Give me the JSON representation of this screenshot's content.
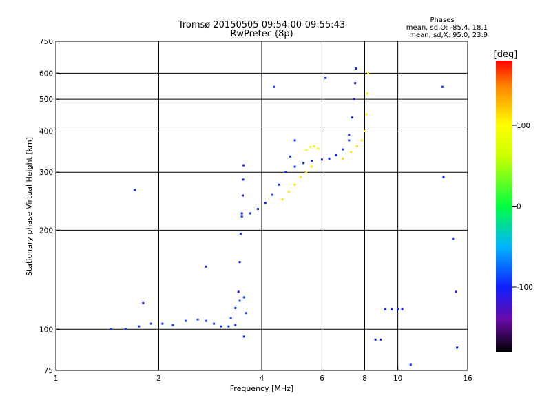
{
  "chart_data": {
    "type": "scatter",
    "title": "Tromsø 20150505 09:54:00-09:55:43",
    "subtitle": "RwPretec (8p)",
    "xlabel": "Frequency [MHz]",
    "ylabel": "Stationary phase Virtual Height [km]",
    "xscale": "log2",
    "yscale": "log",
    "xlim": [
      1,
      16
    ],
    "ylim": [
      75,
      750
    ],
    "grid": true,
    "x_ticks": [
      {
        "value": 1,
        "label": "1"
      },
      {
        "value": 2,
        "label": "2"
      },
      {
        "value": 4,
        "label": "4"
      },
      {
        "value": 6,
        "label": "6"
      },
      {
        "value": 8,
        "label": "8"
      },
      {
        "value": 10,
        "label": "10"
      },
      {
        "value": 16,
        "label": "16"
      }
    ],
    "y_ticks": [
      {
        "value": 75,
        "label": "75"
      },
      {
        "value": 100,
        "label": "100"
      },
      {
        "value": 200,
        "label": "200"
      },
      {
        "value": 300,
        "label": "300"
      },
      {
        "value": 400,
        "label": "400"
      },
      {
        "value": 500,
        "label": "500"
      },
      {
        "value": 600,
        "label": "600"
      },
      {
        "value": 750,
        "label": "750"
      }
    ],
    "stats": {
      "heading": "Phases",
      "o_line": "mean, sd,O: -85.4, 18.1",
      "x_line": "mean, sd,X:  95.0, 23.9"
    },
    "colorbar": {
      "label": "[deg]",
      "range": [
        -180,
        180
      ],
      "ticks": [
        {
          "value": 100,
          "label": "100"
        },
        {
          "value": 0,
          "label": "0"
        },
        {
          "value": -100,
          "label": "-100"
        }
      ],
      "stops": [
        {
          "value": -180,
          "color": "#000000"
        },
        {
          "value": -140,
          "color": "#6a0aa8"
        },
        {
          "value": -100,
          "color": "#1020ff"
        },
        {
          "value": -50,
          "color": "#00b4ff"
        },
        {
          "value": 0,
          "color": "#00ff40"
        },
        {
          "value": 60,
          "color": "#c8ff00"
        },
        {
          "value": 100,
          "color": "#ffff00"
        },
        {
          "value": 150,
          "color": "#ff8000"
        },
        {
          "value": 180,
          "color": "#ff0000"
        }
      ]
    },
    "series": [
      {
        "x": [
          1.45,
          1.6,
          1.75,
          1.9,
          2.05,
          2.2,
          2.4,
          2.6,
          2.75,
          2.9,
          3.05,
          3.2,
          3.35
        ],
        "y": [
          100,
          100,
          102,
          104,
          104,
          103,
          106,
          107,
          106,
          104,
          102,
          102,
          103
        ],
        "phase": -90
      },
      {
        "x": [
          3.25,
          3.35,
          3.45,
          3.55,
          3.6
        ],
        "y": [
          108,
          116,
          122,
          125,
          112
        ],
        "phase": -85
      },
      {
        "x": [
          3.42,
          3.45,
          3.47,
          3.5,
          3.52,
          3.53,
          3.54
        ],
        "y": [
          130,
          160,
          195,
          225,
          255,
          285,
          315
        ],
        "phase": -100
      },
      {
        "x": [
          3.5,
          3.7,
          3.9,
          4.1,
          4.3,
          4.5,
          4.7,
          4.85,
          5.0
        ],
        "y": [
          220,
          225,
          232,
          242,
          256,
          275,
          300,
          335,
          375
        ],
        "phase": -95
      },
      {
        "x": [
          4.6,
          4.8,
          5.0,
          5.2,
          5.4,
          5.6
        ],
        "y": [
          248,
          262,
          275,
          290,
          300,
          312
        ],
        "phase": 110
      },
      {
        "x": [
          5.0,
          5.3,
          5.6,
          6.0,
          6.3,
          6.6,
          6.9,
          7.2
        ],
        "y": [
          312,
          320,
          325,
          328,
          330,
          338,
          352,
          375
        ],
        "phase": -95
      },
      {
        "x": [
          5.4,
          5.55,
          5.7,
          5.85
        ],
        "y": [
          350,
          358,
          360,
          354
        ],
        "phase": 90
      },
      {
        "x": [
          7.2,
          7.35,
          7.45,
          7.5,
          7.55
        ],
        "y": [
          390,
          440,
          500,
          560,
          620
        ],
        "phase": -100
      },
      {
        "x": [
          6.9,
          7.3,
          7.6,
          7.85,
          8.0,
          8.1,
          8.15,
          8.2
        ],
        "y": [
          330,
          345,
          360,
          375,
          400,
          450,
          520,
          600
        ],
        "phase": 110
      },
      {
        "x": [
          9.2,
          9.6,
          10.0,
          10.3
        ],
        "y": [
          115,
          115,
          115,
          115
        ],
        "phase": -100
      },
      {
        "x": [
          1.7,
          1.8,
          2.75,
          3.55,
          4.35,
          6.15,
          8.6,
          8.9,
          10.9,
          13.5,
          13.6,
          14.5,
          14.8,
          14.9
        ],
        "y": [
          265,
          120,
          155,
          95,
          545,
          580,
          93,
          93,
          78,
          545,
          290,
          188,
          130,
          88
        ],
        "phase": -100
      }
    ]
  }
}
